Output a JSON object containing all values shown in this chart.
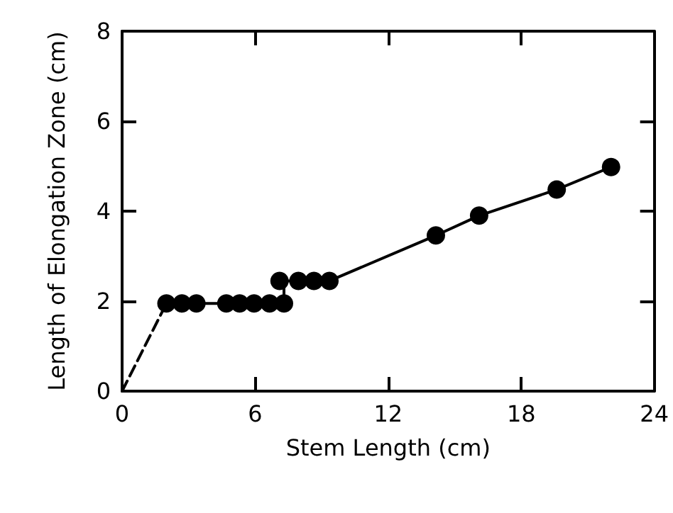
{
  "chart_data": {
    "type": "scatter",
    "xlabel": "Stem Length (cm)",
    "ylabel": "Length of Elongation Zone (cm)",
    "xlim": [
      0,
      24
    ],
    "xticks": [
      0,
      6,
      12,
      18,
      24
    ],
    "ylim": [
      0,
      8
    ],
    "yticks": [
      0,
      2,
      4,
      6,
      8
    ],
    "grid": false,
    "series": [
      {
        "type": "line",
        "line_style": "dashed",
        "marker": "none",
        "color": "#000000",
        "x": [
          0,
          2.0
        ],
        "values": [
          0,
          1.95
        ]
      },
      {
        "type": "line",
        "line_style": "solid",
        "marker": "none",
        "color": "#000000",
        "x": [
          2.0,
          7.3,
          7.3,
          9.35,
          14.15,
          16.1,
          19.6,
          22.05
        ],
        "values": [
          1.95,
          1.95,
          2.45,
          2.45,
          3.46,
          3.9,
          4.48,
          4.98
        ]
      },
      {
        "marker": "circle",
        "color": "#000000",
        "x": [
          2.0,
          2.7,
          3.35,
          4.7,
          5.3,
          5.95,
          6.65,
          7.3,
          7.1,
          7.95,
          8.65,
          9.35,
          14.15,
          16.1,
          19.6,
          22.05
        ],
        "values": [
          1.95,
          1.95,
          1.95,
          1.95,
          1.95,
          1.95,
          1.95,
          1.95,
          2.45,
          2.45,
          2.45,
          2.45,
          3.46,
          3.9,
          4.48,
          4.98
        ]
      }
    ]
  }
}
